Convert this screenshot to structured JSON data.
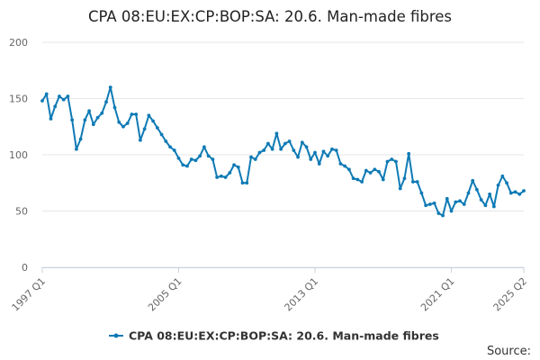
{
  "chart_data": {
    "type": "line",
    "title": "CPA 08:EU:EX:CP:BOP:SA: 20.6. Man-made fibres",
    "xlabel": "",
    "ylabel": "",
    "ylim": [
      0,
      200
    ],
    "y_ticks": [
      0,
      50,
      100,
      150,
      200
    ],
    "x_tick_labels": [
      "1997 Q1",
      "2005 Q1",
      "2013 Q1",
      "2021 Q1",
      "2025 Q2"
    ],
    "x_tick_index": [
      0,
      32,
      64,
      96,
      113
    ],
    "grid": "horizontal",
    "legend_position": "bottom",
    "series": [
      {
        "name": "CPA 08:EU:EX:CP:BOP:SA: 20.6. Man-made fibres",
        "color": "#0e7ab5",
        "x_start": "1997 Q1",
        "values": [
          148,
          154,
          132,
          143,
          152,
          149,
          152,
          131,
          105,
          114,
          131,
          139,
          127,
          133,
          137,
          147,
          160,
          142,
          129,
          125,
          128,
          136,
          136,
          113,
          123,
          135,
          130,
          124,
          118,
          112,
          107,
          104,
          97,
          91,
          90,
          96,
          95,
          99,
          107,
          99,
          96,
          80,
          81,
          80,
          84,
          91,
          89,
          75,
          75,
          98,
          96,
          102,
          104,
          110,
          105,
          119,
          105,
          110,
          112,
          104,
          98,
          111,
          107,
          96,
          102,
          92,
          103,
          99,
          105,
          104,
          92,
          90,
          87,
          79,
          78,
          76,
          86,
          84,
          87,
          85,
          78,
          94,
          96,
          94,
          70,
          79,
          101,
          76,
          76,
          66,
          55,
          56,
          57,
          48,
          46,
          61,
          50,
          58,
          59,
          56,
          66,
          77,
          69,
          60,
          55,
          65,
          54,
          73,
          81,
          75,
          66,
          67,
          65,
          68
        ]
      }
    ],
    "source_label": "Source:"
  }
}
